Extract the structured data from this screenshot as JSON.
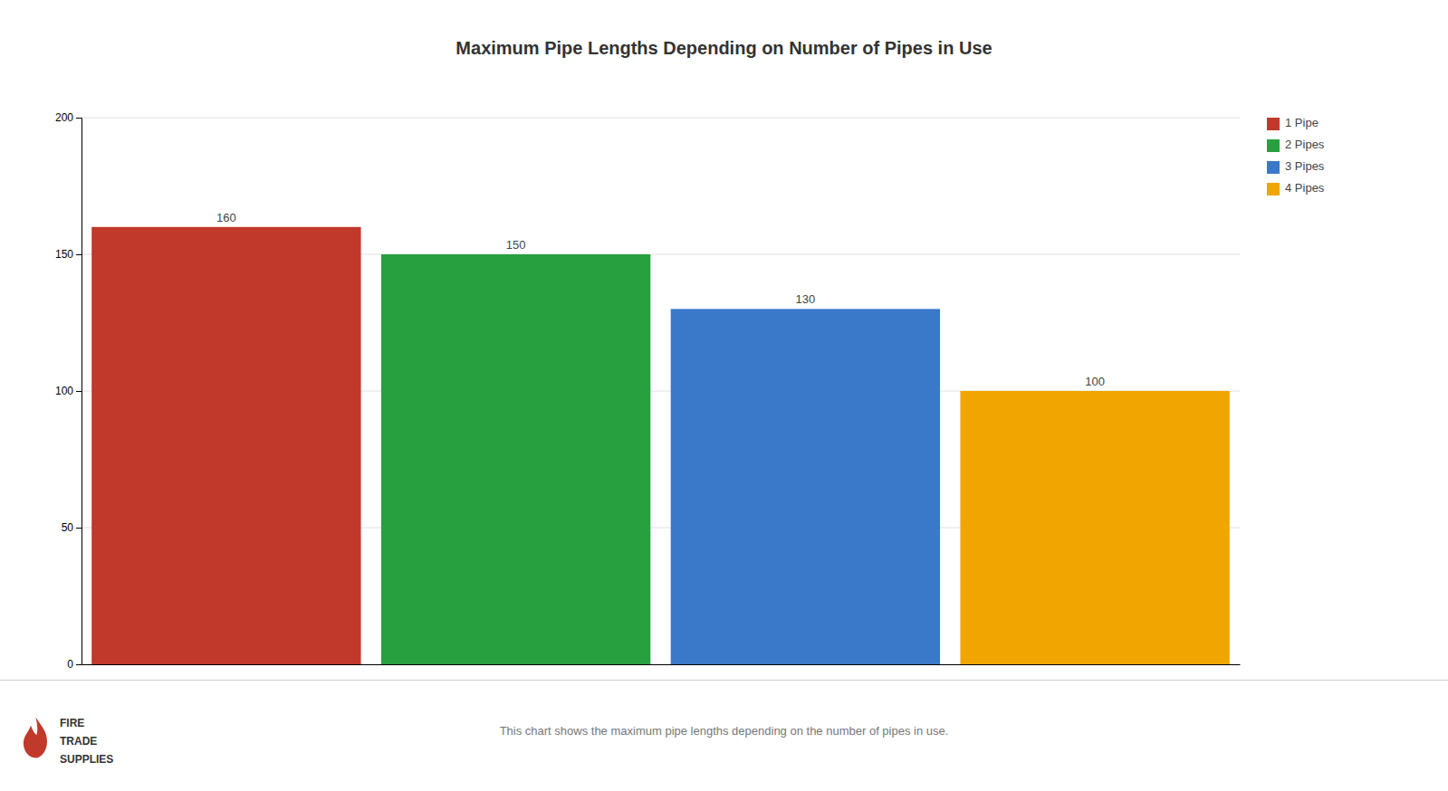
{
  "chart_data": {
    "type": "bar",
    "title": "Maximum Pipe Lengths Depending on Number of Pipes in Use",
    "categories": [
      "1 Pipe",
      "2 Pipes",
      "3 Pipes",
      "4 Pipes"
    ],
    "values": [
      160,
      150,
      130,
      100
    ],
    "colors": [
      "#c0392b",
      "#27a040",
      "#3a78c9",
      "#f0a500"
    ],
    "ylim": [
      0,
      200
    ],
    "yticks": [
      0,
      50,
      100,
      150,
      200
    ],
    "grid": true,
    "legend": "upper right",
    "data_labels": true,
    "tick_labels": "y",
    "annotations": [
      "This chart shows the maximum pipe lengths depending on the number of pipes in use.",
      "FIRE",
      "TRADE",
      "SUPPLIES"
    ]
  }
}
